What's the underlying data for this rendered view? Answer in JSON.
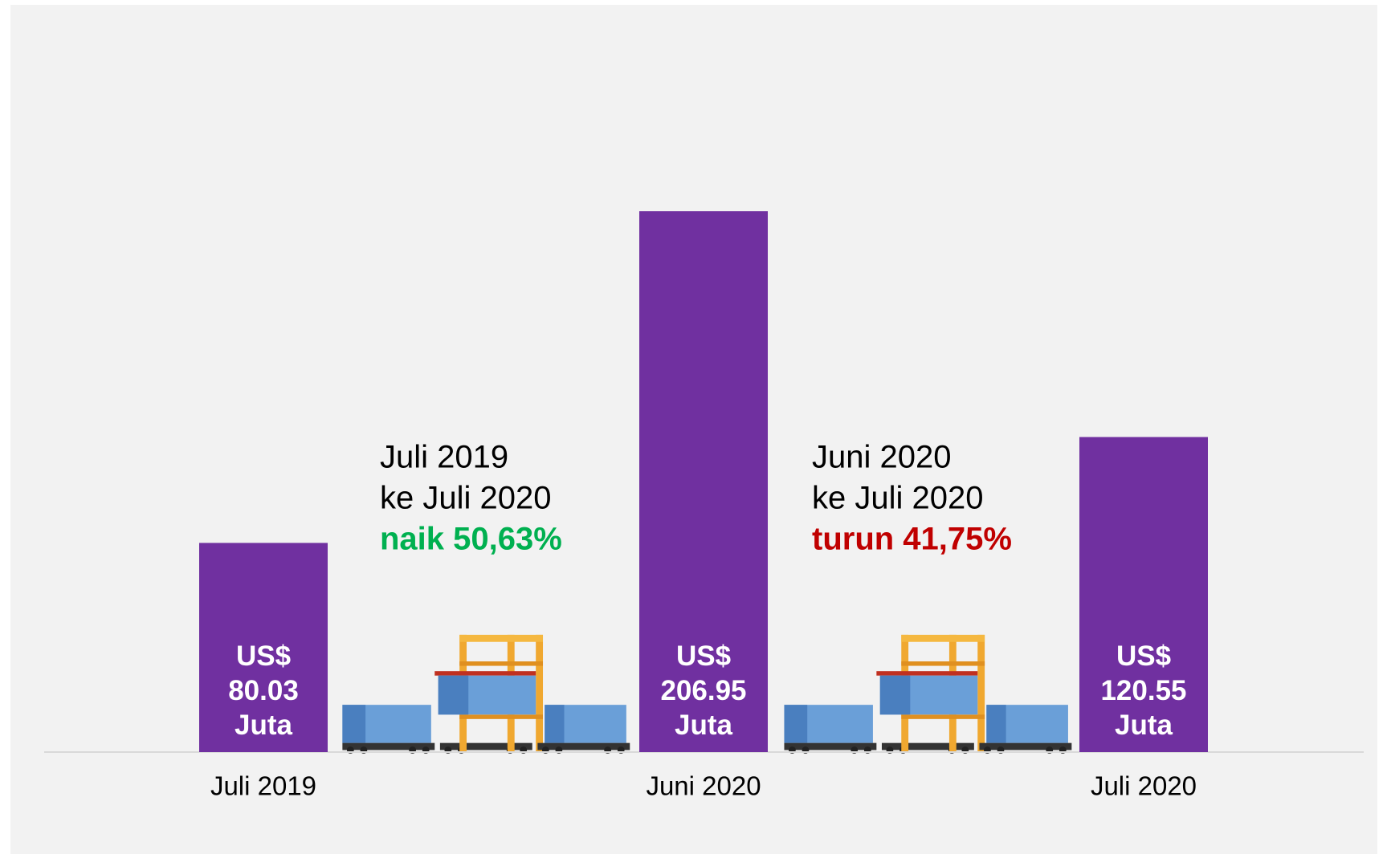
{
  "chart_data": {
    "type": "bar",
    "categories": [
      "Juli 2019",
      "Juni 2020",
      "Juli 2020"
    ],
    "values": [
      80.03,
      206.95,
      120.55
    ],
    "value_labels": [
      "US$ 80.03 Juta",
      "US$ 206.95 Juta",
      "US$ 120.55 Juta"
    ],
    "color": "#7030a0",
    "ylim": [
      0,
      250
    ],
    "annotations": [
      {
        "lines": [
          "Juli 2019",
          "ke Juli 2020"
        ],
        "highlight": "naik 50,63%",
        "highlight_color": "#00b050"
      },
      {
        "lines": [
          "Juni 2020",
          "ke Juli 2020"
        ],
        "highlight": "turun 41,75%",
        "highlight_color": "#c00000"
      }
    ]
  }
}
